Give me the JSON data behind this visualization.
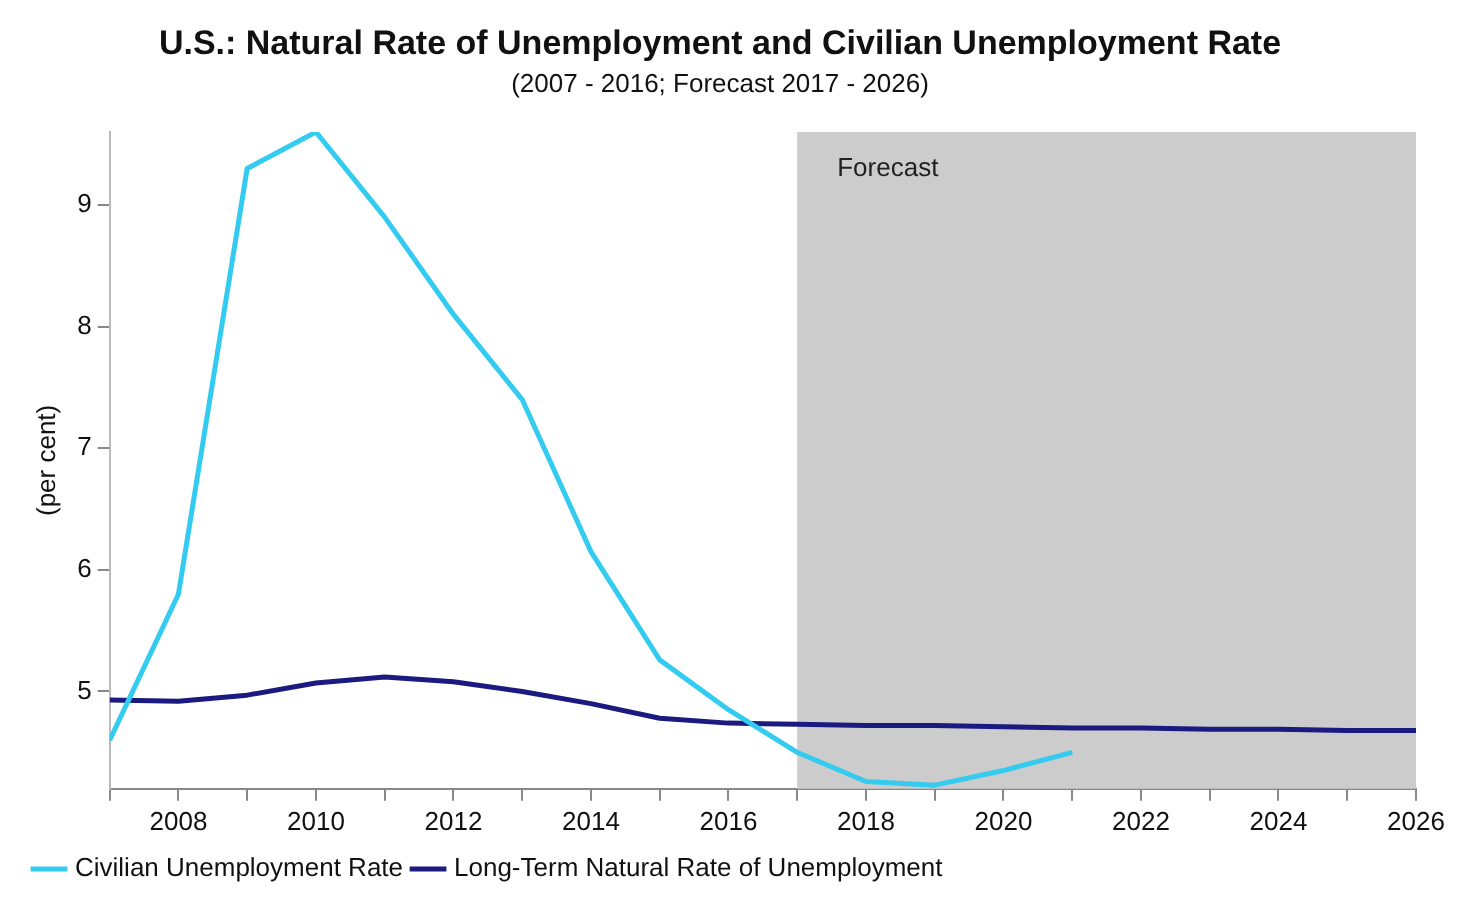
{
  "chart_data": {
    "type": "line",
    "title": "U.S.: Natural Rate of Unemployment and Civilian Unemployment Rate",
    "subtitle": "(2007 - 2016; Forecast 2017 - 2026)",
    "ylabel": "(per cent)",
    "xlim": [
      2007,
      2026
    ],
    "xticks": [
      {
        "value": 2007,
        "label": null
      },
      2008,
      {
        "value": 2009,
        "label": null
      },
      2010,
      {
        "value": 2011,
        "label": null
      },
      2012,
      {
        "value": 2013,
        "label": null
      },
      2014,
      {
        "value": 2015,
        "label": null
      },
      2016,
      {
        "value": 2017,
        "label": null
      },
      2018,
      {
        "value": 2019,
        "label": null
      },
      2020,
      {
        "value": 2021,
        "label": null
      },
      2022,
      {
        "value": 2023,
        "label": null
      },
      2024,
      {
        "value": 2025,
        "label": null
      },
      2026
    ],
    "ylim": [
      4.2,
      9.6
    ],
    "yticks": [
      5,
      6,
      7,
      8,
      9
    ],
    "grid": false,
    "legend": "bottom",
    "marker": "none",
    "line_style": "solid",
    "bands": [
      {
        "axis": "x",
        "from": 2017,
        "to": 2026,
        "label": "Forecast",
        "color": "#cccccc"
      }
    ],
    "series": [
      {
        "name": "Civilian Unemployment Rate",
        "color": "#33ccf0",
        "x": [
          2007,
          2008,
          2009,
          2010,
          2011,
          2012,
          2013,
          2014,
          2015,
          2016,
          2017,
          2018,
          2019,
          2020,
          2021
        ],
        "values": [
          4.6,
          5.8,
          9.3,
          9.6,
          8.9,
          8.1,
          7.4,
          6.15,
          5.26,
          4.85,
          4.5,
          4.26,
          4.23,
          4.35,
          4.5
        ]
      },
      {
        "name": "Long-Term Natural Rate of Unemployment",
        "color": "#1a1a80",
        "x": [
          2007,
          2008,
          2009,
          2010,
          2011,
          2012,
          2013,
          2014,
          2015,
          2016,
          2017,
          2018,
          2019,
          2020,
          2021,
          2022,
          2023,
          2024,
          2025,
          2026
        ],
        "values": [
          4.93,
          4.92,
          4.97,
          5.07,
          5.12,
          5.08,
          5.0,
          4.9,
          4.78,
          4.74,
          4.73,
          4.72,
          4.72,
          4.71,
          4.7,
          4.7,
          4.69,
          4.69,
          4.68,
          4.68
        ]
      }
    ]
  }
}
